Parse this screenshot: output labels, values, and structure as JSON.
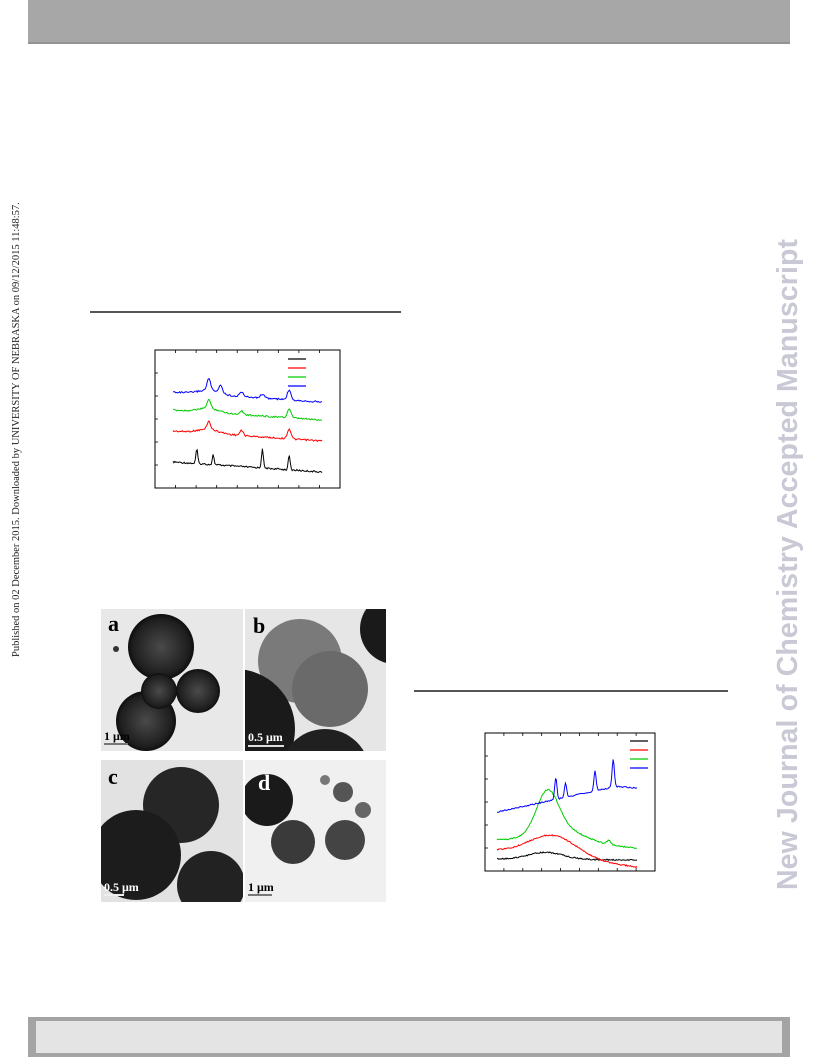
{
  "header": {},
  "side_stamp": "Published on 02 December 2015. Downloaded by UNIVERSITY OF NEBRASKA on 09/12/2015 11:48:57.",
  "watermark": "New Journal of Chemistry Accepted Manuscript",
  "chart_data": [
    {
      "type": "line",
      "title": "",
      "xlabel": "",
      "ylabel": "",
      "grid": false,
      "legend": "top-right",
      "x_ticks": 9,
      "series": [
        {
          "color": "#000000",
          "peaks": [
            0.16,
            0.27,
            0.6,
            0.78
          ]
        },
        {
          "color": "#ff0000",
          "peaks": [
            0.24,
            0.46,
            0.78
          ]
        },
        {
          "color": "#00cc00",
          "peaks": [
            0.24,
            0.46,
            0.78
          ]
        },
        {
          "color": "#0000ff",
          "peaks": [
            0.24,
            0.32,
            0.46,
            0.6,
            0.78
          ]
        }
      ]
    },
    {
      "type": "line",
      "title": "",
      "xlabel": "",
      "ylabel": "",
      "grid": false,
      "legend": "top-right",
      "x_ticks": 9,
      "series": [
        {
          "color": "#000000",
          "shape": "broad-hump"
        },
        {
          "color": "#ff0000",
          "shape": "broad-hump"
        },
        {
          "color": "#00cc00",
          "shape": "broad-hump-shoulder"
        },
        {
          "color": "#0000ff",
          "shape": "sharp-peaks"
        }
      ]
    }
  ],
  "tem_figure": {
    "panels": [
      {
        "letter": "a",
        "scale": "1 μm"
      },
      {
        "letter": "b",
        "scale": "0.5 μm"
      },
      {
        "letter": "c",
        "scale": "0.5 μm"
      },
      {
        "letter": "d",
        "scale": "1 μm"
      }
    ]
  }
}
